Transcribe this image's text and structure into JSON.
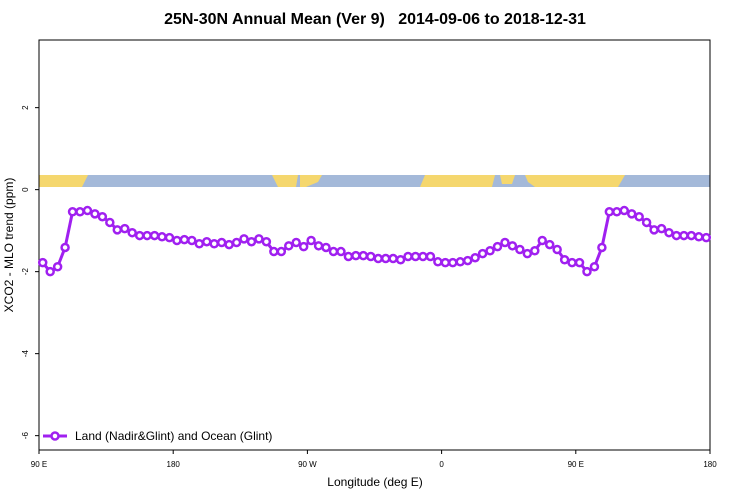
{
  "chart_data": {
    "type": "line",
    "title": "25N-30N Annual Mean (Ver 9)   2014-09-06 to 2018-12-31",
    "x_label": "Longitude (deg E)",
    "y_label": "XCO2 - MLO trend (ppm)",
    "xlim": [
      90,
      540
    ],
    "xticks": [
      {
        "value": 90,
        "label": "90 E"
      },
      {
        "value": 180,
        "label": "180"
      },
      {
        "value": 270,
        "label": "90 W"
      },
      {
        "value": 360,
        "label": "0"
      },
      {
        "value": 450,
        "label": "90 E"
      },
      {
        "value": 540,
        "label": "180"
      }
    ],
    "ylim": [
      -6.35,
      3.65
    ],
    "yticks": [
      -6,
      -4,
      -2,
      0,
      2
    ],
    "legend": "bottom-left",
    "x": [
      92.5,
      97.5,
      102.5,
      107.5,
      112.5,
      117.5,
      122.5,
      127.5,
      132.5,
      137.5,
      142.5,
      147.5,
      152.5,
      157.5,
      162.5,
      167.5,
      172.5,
      177.5,
      182.5,
      187.5,
      192.5,
      197.5,
      202.5,
      207.5,
      212.5,
      217.5,
      222.5,
      227.5,
      232.5,
      237.5,
      242.5,
      247.5,
      252.5,
      257.5,
      262.5,
      267.5,
      272.5,
      277.5,
      282.5,
      287.5,
      292.5,
      297.5,
      302.5,
      307.5,
      312.5,
      317.5,
      322.5,
      327.5,
      332.5,
      337.5,
      342.5,
      347.5,
      352.5,
      357.5,
      362.5,
      367.5,
      372.5,
      377.5,
      382.5,
      387.5,
      392.5,
      397.5,
      402.5,
      407.5,
      412.5,
      417.5,
      422.5,
      427.5,
      432.5,
      437.5,
      442.5,
      447.5,
      452.5,
      457.5,
      462.5,
      467.5,
      472.5,
      477.5,
      482.5,
      487.5,
      492.5,
      497.5,
      502.5,
      507.5,
      512.5,
      517.5,
      522.5,
      527.5,
      532.5,
      537.5
    ],
    "series": [
      {
        "name": "Land (Nadir&Glint) and Ocean (Glint)",
        "color": "#a020f0",
        "values": [
          -1.78,
          -2.0,
          -1.88,
          -1.41,
          -0.54,
          -0.54,
          -0.51,
          -0.59,
          -0.66,
          -0.8,
          -0.98,
          -0.95,
          -1.05,
          -1.12,
          -1.12,
          -1.12,
          -1.15,
          -1.17,
          -1.24,
          -1.22,
          -1.24,
          -1.32,
          -1.27,
          -1.32,
          -1.29,
          -1.34,
          -1.29,
          -1.2,
          -1.27,
          -1.2,
          -1.27,
          -1.51,
          -1.51,
          -1.37,
          -1.29,
          -1.39,
          -1.24,
          -1.37,
          -1.41,
          -1.51,
          -1.51,
          -1.63,
          -1.61,
          -1.61,
          -1.63,
          -1.68,
          -1.68,
          -1.68,
          -1.71,
          -1.63,
          -1.63,
          -1.63,
          -1.63,
          -1.76,
          -1.78,
          -1.78,
          -1.76,
          -1.73,
          -1.66,
          -1.56,
          -1.49,
          -1.39,
          -1.29,
          -1.37,
          -1.46,
          -1.56,
          -1.49,
          -1.24,
          -1.34,
          -1.46,
          -1.71,
          -1.78,
          -1.78,
          -2.0,
          -1.88,
          -1.41,
          -0.54,
          -0.54,
          -0.51,
          -0.59,
          -0.66,
          -0.8,
          -0.98,
          -0.95,
          -1.05,
          -1.12,
          -1.12,
          -1.12,
          -1.15,
          -1.17
        ]
      }
    ]
  }
}
